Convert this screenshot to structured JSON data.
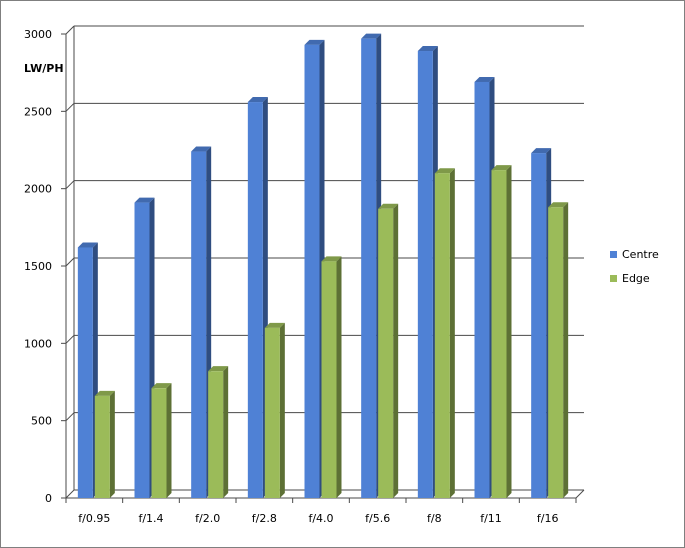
{
  "chart_data": {
    "type": "bar",
    "ylabel": "LW/PH",
    "xlabel": "",
    "ylim": [
      0,
      3000
    ],
    "yticks": [
      0,
      500,
      1000,
      1500,
      2000,
      2500,
      3000
    ],
    "grid": true,
    "legend_position": "right",
    "categories": [
      "f/0.95",
      "f/1.4",
      "f/2.0",
      "f/2.8",
      "f/4.0",
      "f/5.6",
      "f/8",
      "f/11",
      "f/16"
    ],
    "series": [
      {
        "name": "Centre",
        "color": "#4f81d5",
        "values": [
          1620,
          1910,
          2240,
          2560,
          2930,
          2970,
          2890,
          2690,
          2230
        ]
      },
      {
        "name": "Edge",
        "color": "#9bbb59",
        "values": [
          660,
          710,
          820,
          1100,
          1530,
          1870,
          2100,
          2120,
          1880
        ]
      }
    ]
  }
}
